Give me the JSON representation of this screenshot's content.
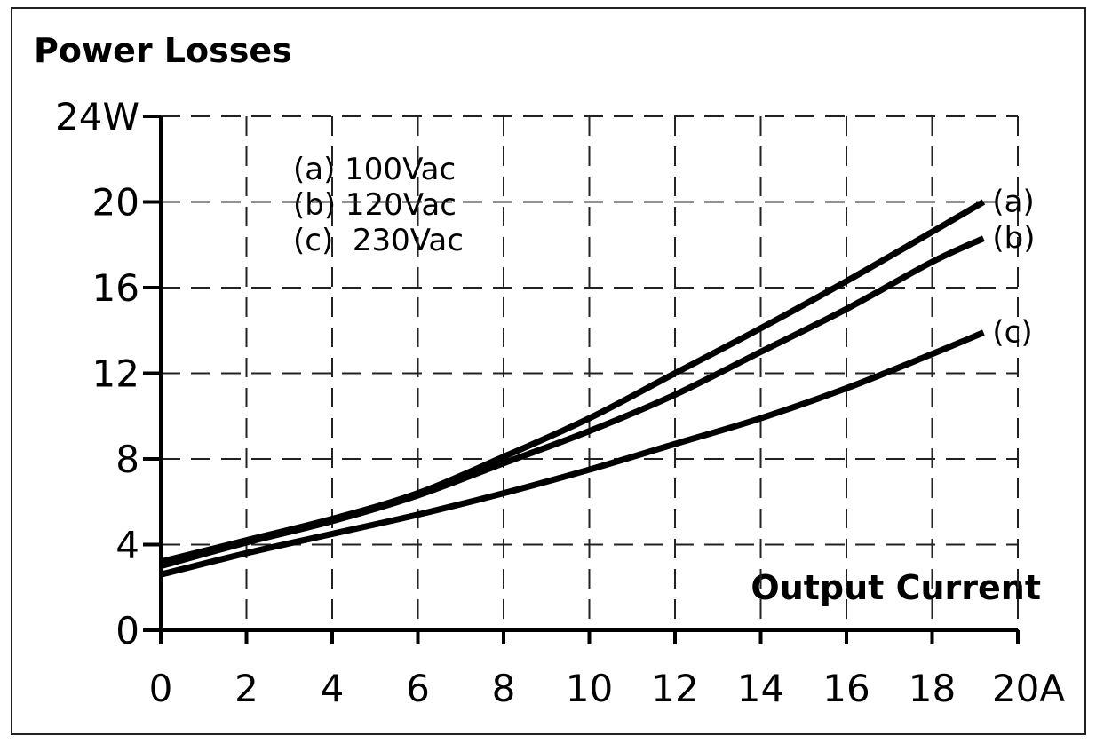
{
  "chart_data": {
    "type": "line",
    "title": "Power Losses",
    "xlabel": "Output Current",
    "ylabel": "",
    "xlim": [
      0,
      20
    ],
    "ylim": [
      0,
      24
    ],
    "x_ticks": [
      "0",
      "2",
      "4",
      "6",
      "8",
      "10",
      "12",
      "14",
      "16",
      "18",
      "20A"
    ],
    "y_ticks": [
      "0",
      "4",
      "8",
      "12",
      "16",
      "20",
      "24W"
    ],
    "grid": true,
    "grid_style": "dashed",
    "legend_position": "top-left",
    "legend": [
      "(a) 100Vac",
      "(b) 120Vac",
      "(c)  230Vac"
    ],
    "line_color": "#000000",
    "x": [
      0,
      2,
      4,
      6,
      8,
      10,
      12,
      14,
      16,
      18,
      19.2
    ],
    "series": [
      {
        "name": "(a)",
        "values": [
          3.2,
          4.2,
          5.2,
          6.4,
          8.1,
          9.9,
          12.0,
          14.1,
          16.3,
          18.6,
          20.0
        ]
      },
      {
        "name": "(b)",
        "values": [
          3.0,
          4.1,
          5.1,
          6.3,
          7.8,
          9.3,
          11.0,
          13.0,
          15.0,
          17.2,
          18.3
        ]
      },
      {
        "name": "(c)",
        "values": [
          2.6,
          3.6,
          4.5,
          5.4,
          6.4,
          7.5,
          8.7,
          9.9,
          11.3,
          12.9,
          13.9
        ]
      }
    ]
  }
}
